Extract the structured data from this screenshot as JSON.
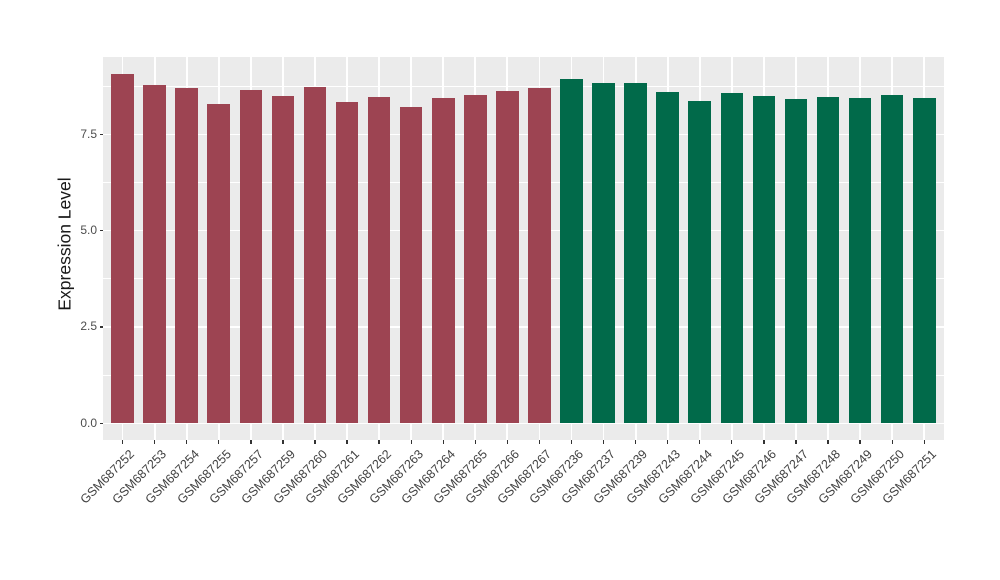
{
  "chart_data": {
    "type": "bar",
    "title": "",
    "xlabel": "",
    "ylabel": "Expression Level",
    "ylim": [
      0,
      9.5
    ],
    "yticks": [
      0.0,
      2.5,
      5.0,
      7.5
    ],
    "ytick_labels": [
      "0.0",
      "2.5",
      "5.0",
      "7.5"
    ],
    "yticks_minor": [
      1.25,
      3.75,
      6.25,
      8.75
    ],
    "grid": "white major and minor gridlines on gray panel",
    "legend_position": "none",
    "x_label_angle_deg": 45,
    "categories": [
      "GSM687252",
      "GSM687253",
      "GSM687254",
      "GSM687255",
      "GSM687257",
      "GSM687259",
      "GSM687260",
      "GSM687261",
      "GSM687262",
      "GSM687263",
      "GSM687264",
      "GSM687265",
      "GSM687266",
      "GSM687267",
      "GSM687236",
      "GSM687237",
      "GSM687239",
      "GSM687243",
      "GSM687244",
      "GSM687245",
      "GSM687246",
      "GSM687247",
      "GSM687248",
      "GSM687249",
      "GSM687250",
      "GSM687251"
    ],
    "values": [
      9.07,
      8.78,
      8.7,
      8.28,
      8.65,
      8.5,
      8.73,
      8.35,
      8.47,
      8.21,
      8.44,
      8.51,
      8.62,
      8.69,
      8.94,
      8.82,
      8.84,
      8.6,
      8.37,
      8.56,
      8.49,
      8.41,
      8.47,
      8.44,
      8.52,
      8.43
    ],
    "groups": [
      "group1",
      "group1",
      "group1",
      "group1",
      "group1",
      "group1",
      "group1",
      "group1",
      "group1",
      "group1",
      "group1",
      "group1",
      "group1",
      "group1",
      "group2",
      "group2",
      "group2",
      "group2",
      "group2",
      "group2",
      "group2",
      "group2",
      "group2",
      "group2",
      "group2",
      "group2"
    ],
    "group_colors": {
      "group1": "#9D4452",
      "group2": "#016A4A"
    }
  },
  "style": {
    "figure_bg": "#FFFFFF",
    "panel_bg": "#EBEBEB",
    "grid_color": "#FFFFFF",
    "axis_text_color": "#4D4D4D",
    "x_axis_text_color": "#404040",
    "axis_title_color": "#1A1A1A",
    "tick_mark_color": "#333333"
  }
}
